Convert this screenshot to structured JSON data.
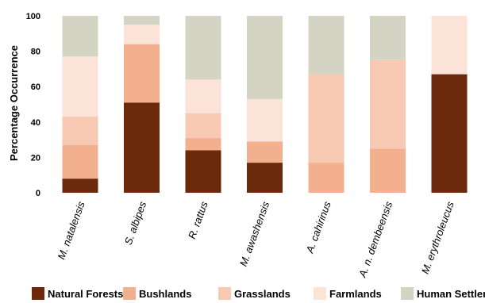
{
  "chart_data": {
    "type": "bar",
    "stacked": true,
    "ylabel": "Percentage Occurrence",
    "xlabel": "",
    "ylim": [
      0,
      100
    ],
    "yticks": [
      0,
      20,
      40,
      60,
      80,
      100
    ],
    "grid": false,
    "legend_position": "bottom",
    "categories": [
      "M. natalensis",
      "S. albipes",
      "R. rattus",
      "M. awashensis",
      "A. cahirinus",
      "A. n. dembeensis",
      "M. erythroleucus"
    ],
    "series": [
      {
        "name": "Natural Forests",
        "color": "#6b2a0c",
        "values": [
          8,
          51,
          24,
          17,
          0,
          0,
          67
        ]
      },
      {
        "name": "Bushlands",
        "color": "#f2b08e",
        "values": [
          19,
          33,
          7,
          12,
          17,
          25,
          0
        ]
      },
      {
        "name": "Grasslands",
        "color": "#f7c9b3",
        "values": [
          16,
          0,
          14,
          0,
          50,
          50,
          0
        ]
      },
      {
        "name": "Farmlands",
        "color": "#fbe3d8",
        "values": [
          34,
          11,
          19,
          24,
          0,
          0,
          33
        ]
      },
      {
        "name": "Human Settlements",
        "color": "#d3d4c4",
        "values": [
          23,
          5,
          36,
          47,
          33,
          25,
          0
        ]
      }
    ]
  }
}
